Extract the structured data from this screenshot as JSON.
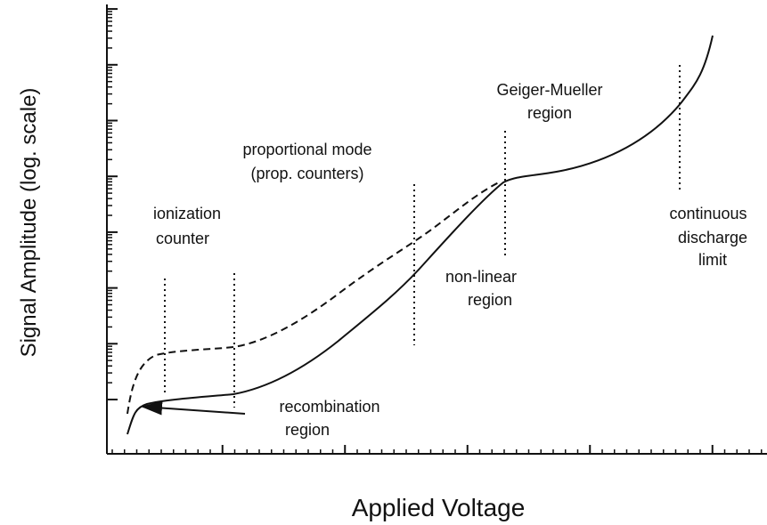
{
  "axes": {
    "x_label": "Applied Voltage",
    "y_label": "Signal Amplitude (log. scale)"
  },
  "regions": [
    {
      "lines": [
        "ionization",
        "counter"
      ]
    },
    {
      "lines": [
        "proportional mode",
        "(prop. counters)"
      ]
    },
    {
      "lines": [
        "Geiger-Mueller",
        "region"
      ]
    },
    {
      "lines": [
        "continuous",
        "discharge",
        "limit"
      ]
    },
    {
      "lines": [
        "non-linear",
        "region"
      ]
    },
    {
      "lines": [
        "recombination",
        "region"
      ]
    }
  ]
}
